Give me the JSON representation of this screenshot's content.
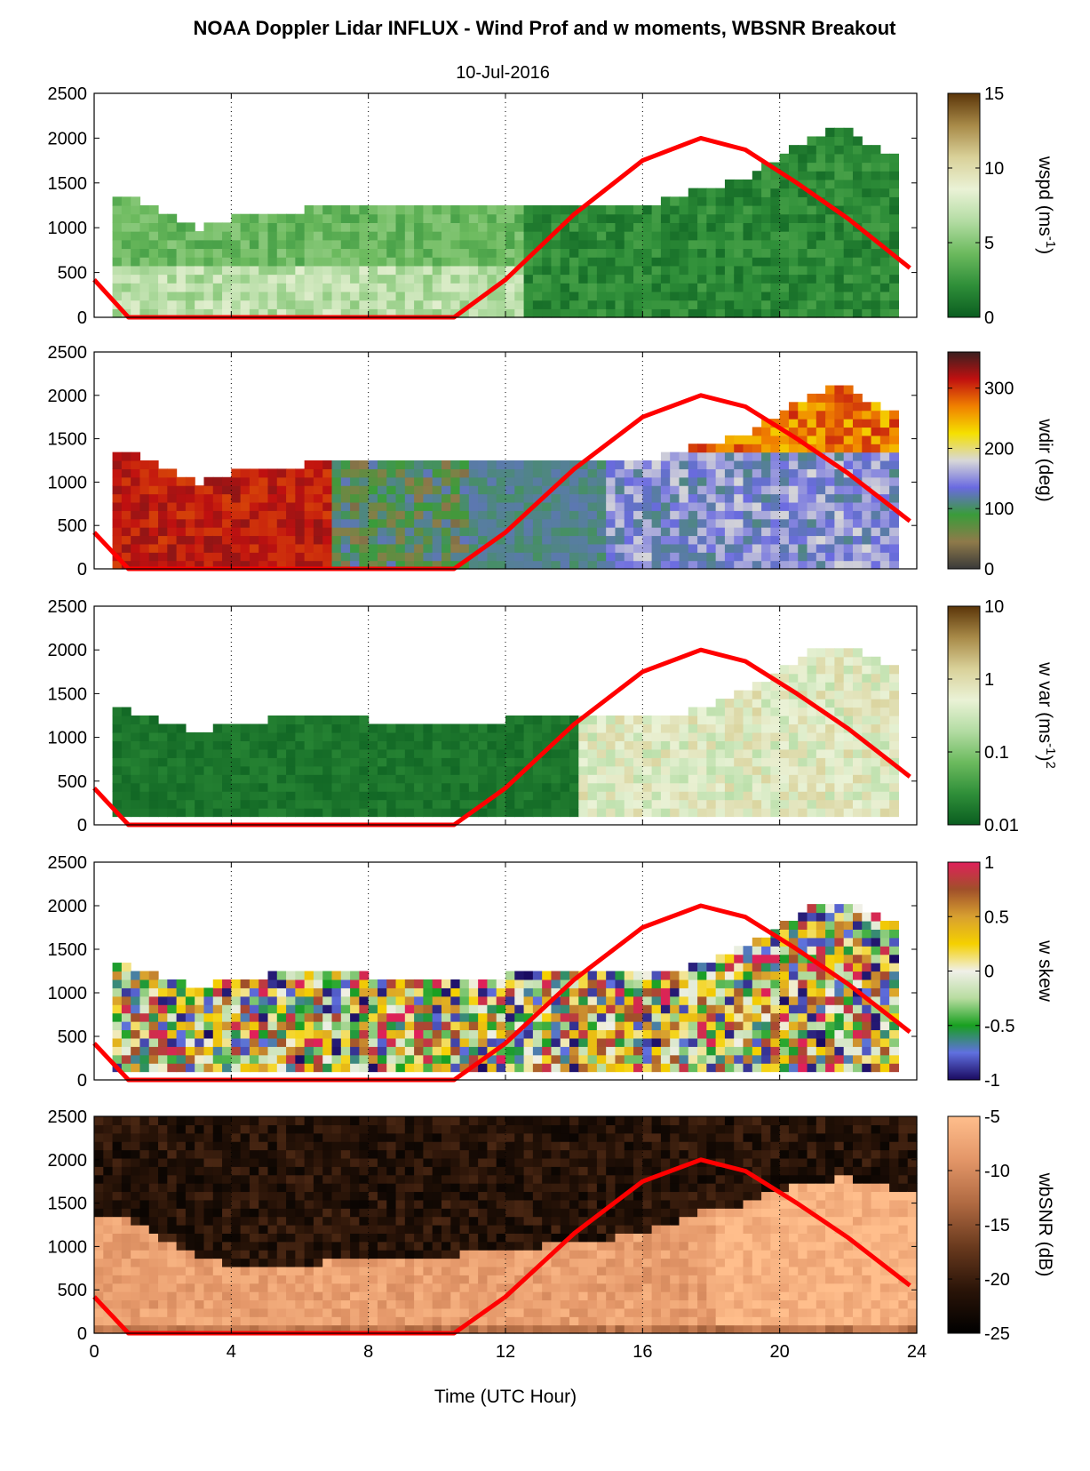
{
  "figure": {
    "title": "NOAA Doppler Lidar INFLUX - Wind Prof and w moments, WBSNR Breakout",
    "date": "10-Jul-2016",
    "xlabel": "Time (UTC Hour)",
    "x_ticks": [
      "0",
      "4",
      "8",
      "12",
      "16",
      "20",
      "24"
    ],
    "y_ticks": [
      "0",
      "500",
      "1000",
      "1500",
      "2000",
      "2500"
    ],
    "sun_line_color": "#ff0000"
  },
  "chart_data": [
    {
      "type": "heatmap",
      "name": "wspd",
      "colorbar_label": "wspd (ms",
      "colorbar_sup": "-1",
      "colorbar_close": ")",
      "colorbar_ticks": [
        "0",
        "5",
        "10",
        "15"
      ],
      "colorbar_range": [
        0,
        15
      ],
      "colormap": [
        "#0a5d20",
        "#2f8f39",
        "#6cba5e",
        "#b3dca3",
        "#eaf2d6",
        "#d9d199",
        "#a88a48",
        "#5b3509"
      ],
      "xlim": [
        0,
        24
      ],
      "ylim": [
        0,
        2500
      ],
      "grid": "vertical dotted",
      "boundary_top": [
        [
          0,
          1400
        ],
        [
          1,
          1350
        ],
        [
          2,
          1200
        ],
        [
          3,
          1000
        ],
        [
          4,
          1100
        ],
        [
          6,
          1200
        ],
        [
          8,
          1250
        ],
        [
          10,
          1250
        ],
        [
          12,
          1250
        ],
        [
          14,
          1250
        ],
        [
          15,
          1300
        ],
        [
          16,
          1200
        ],
        [
          17,
          1350
        ],
        [
          18,
          1450
        ],
        [
          19,
          1550
        ],
        [
          20,
          1800
        ],
        [
          21,
          2050
        ],
        [
          22,
          2100
        ],
        [
          23,
          1850
        ],
        [
          24,
          1700
        ]
      ],
      "sun_elevation_curve": [
        [
          0,
          420
        ],
        [
          1,
          0
        ],
        [
          10.5,
          0
        ],
        [
          12,
          420
        ],
        [
          14,
          1150
        ],
        [
          16,
          1750
        ],
        [
          17.7,
          2000
        ],
        [
          19,
          1870
        ],
        [
          20.5,
          1500
        ],
        [
          22,
          1100
        ],
        [
          23.8,
          550
        ]
      ]
    },
    {
      "type": "heatmap",
      "name": "wdir",
      "colorbar_label": "wdir (deg)",
      "colorbar_ticks": [
        "0",
        "100",
        "200",
        "300"
      ],
      "colorbar_range": [
        0,
        360
      ],
      "colormap": [
        "#3a3a3a",
        "#8f7a4a",
        "#3a9c3a",
        "#6a6ae0",
        "#d8d8d8",
        "#f5e000",
        "#f08000",
        "#c01010",
        "#3a2020"
      ],
      "xlim": [
        0,
        24
      ],
      "ylim": [
        0,
        2500
      ],
      "grid": "vertical dotted",
      "boundary_top": [
        [
          0,
          1400
        ],
        [
          1,
          1350
        ],
        [
          2,
          1200
        ],
        [
          3,
          1000
        ],
        [
          4,
          1100
        ],
        [
          6,
          1200
        ],
        [
          8,
          1250
        ],
        [
          10,
          1250
        ],
        [
          12,
          1250
        ],
        [
          14,
          1250
        ],
        [
          15,
          1300
        ],
        [
          16,
          1200
        ],
        [
          17,
          1350
        ],
        [
          18,
          1450
        ],
        [
          19,
          1550
        ],
        [
          20,
          1800
        ],
        [
          21,
          2050
        ],
        [
          22,
          2100
        ],
        [
          23,
          1850
        ],
        [
          24,
          1700
        ]
      ],
      "sun_elevation_curve": [
        [
          0,
          420
        ],
        [
          1,
          0
        ],
        [
          10.5,
          0
        ],
        [
          12,
          420
        ],
        [
          14,
          1150
        ],
        [
          16,
          1750
        ],
        [
          17.7,
          2000
        ],
        [
          19,
          1870
        ],
        [
          20.5,
          1500
        ],
        [
          22,
          1100
        ],
        [
          23.8,
          550
        ]
      ]
    },
    {
      "type": "heatmap",
      "name": "w var",
      "colorbar_label": "w var (ms",
      "colorbar_sup": "-1",
      "colorbar_close": ")",
      "colorbar_sup2": "2",
      "colorbar_ticks": [
        "0.01",
        "0.1",
        "1",
        "10"
      ],
      "colorbar_range": [
        0.01,
        10
      ],
      "colorbar_scale": "log",
      "colormap": [
        "#0a5d20",
        "#2f8f39",
        "#6cba5e",
        "#b3dca3",
        "#eaf2d6",
        "#d9d199",
        "#a88a48",
        "#5b3509"
      ],
      "xlim": [
        0,
        24
      ],
      "ylim": [
        0,
        2500
      ],
      "grid": "vertical dotted",
      "boundary_top": [
        [
          0,
          1350
        ],
        [
          1,
          1300
        ],
        [
          3,
          1050
        ],
        [
          4,
          1150
        ],
        [
          6,
          1250
        ],
        [
          8,
          1200
        ],
        [
          12,
          1200
        ],
        [
          14,
          1250
        ],
        [
          16,
          1200
        ],
        [
          18,
          1350
        ],
        [
          20,
          1750
        ],
        [
          21,
          2000
        ],
        [
          22,
          2050
        ],
        [
          23,
          1850
        ],
        [
          24,
          1800
        ]
      ],
      "sun_elevation_curve": [
        [
          0,
          420
        ],
        [
          1,
          0
        ],
        [
          10.5,
          0
        ],
        [
          12,
          420
        ],
        [
          14,
          1150
        ],
        [
          16,
          1750
        ],
        [
          17.7,
          2000
        ],
        [
          19,
          1870
        ],
        [
          20.5,
          1500
        ],
        [
          22,
          1100
        ],
        [
          23.8,
          550
        ]
      ]
    },
    {
      "type": "heatmap",
      "name": "w skew",
      "colorbar_label": "w skew",
      "colorbar_ticks": [
        "-1",
        "-0.5",
        "0",
        "0.5",
        "1"
      ],
      "colorbar_range": [
        -1,
        1
      ],
      "colormap": [
        "#1a0a60",
        "#6070e0",
        "#18a020",
        "#b8dca0",
        "#f0f0e8",
        "#f5d000",
        "#d8a030",
        "#a0502a",
        "#e0205a"
      ],
      "xlim": [
        0,
        24
      ],
      "ylim": [
        0,
        2500
      ],
      "grid": "vertical dotted",
      "boundary_top": [
        [
          0,
          1350
        ],
        [
          1,
          1300
        ],
        [
          3,
          1050
        ],
        [
          4,
          1150
        ],
        [
          6,
          1250
        ],
        [
          8,
          1200
        ],
        [
          12,
          1200
        ],
        [
          14,
          1250
        ],
        [
          16,
          1200
        ],
        [
          18,
          1350
        ],
        [
          20,
          1750
        ],
        [
          21,
          2000
        ],
        [
          22,
          2050
        ],
        [
          23,
          1850
        ],
        [
          24,
          1800
        ]
      ],
      "sun_elevation_curve": [
        [
          0,
          420
        ],
        [
          1,
          0
        ],
        [
          10.5,
          0
        ],
        [
          12,
          420
        ],
        [
          14,
          1150
        ],
        [
          16,
          1750
        ],
        [
          17.7,
          2000
        ],
        [
          19,
          1870
        ],
        [
          20.5,
          1500
        ],
        [
          22,
          1100
        ],
        [
          23.8,
          550
        ]
      ]
    },
    {
      "type": "heatmap",
      "name": "wbSNR",
      "colorbar_label": "wbSNR (dB)",
      "colorbar_ticks": [
        "-25",
        "-20",
        "-15",
        "-10",
        "-5"
      ],
      "colorbar_range": [
        -25,
        -5
      ],
      "colormap": [
        "#000000",
        "#2a1408",
        "#6a3a1e",
        "#b06a42",
        "#e39668",
        "#ffbe8c"
      ],
      "xlim": [
        0,
        24
      ],
      "ylim": [
        0,
        2500
      ],
      "grid": "vertical dotted",
      "signal_top": [
        [
          0,
          1400
        ],
        [
          1,
          1300
        ],
        [
          2,
          1100
        ],
        [
          3,
          900
        ],
        [
          4,
          800
        ],
        [
          6,
          800
        ],
        [
          8,
          850
        ],
        [
          10,
          900
        ],
        [
          12,
          950
        ],
        [
          14,
          1050
        ],
        [
          16,
          1150
        ],
        [
          17,
          1300
        ],
        [
          18,
          1450
        ],
        [
          19,
          1500
        ],
        [
          20,
          1650
        ],
        [
          21,
          1750
        ],
        [
          22,
          1800
        ],
        [
          23,
          1700
        ],
        [
          24,
          1600
        ]
      ],
      "sun_elevation_curve": [
        [
          0,
          420
        ],
        [
          1,
          0
        ],
        [
          10.5,
          0
        ],
        [
          12,
          420
        ],
        [
          14,
          1150
        ],
        [
          16,
          1750
        ],
        [
          17.7,
          2000
        ],
        [
          19,
          1870
        ],
        [
          20.5,
          1500
        ],
        [
          22,
          1100
        ],
        [
          23.8,
          550
        ]
      ]
    }
  ]
}
